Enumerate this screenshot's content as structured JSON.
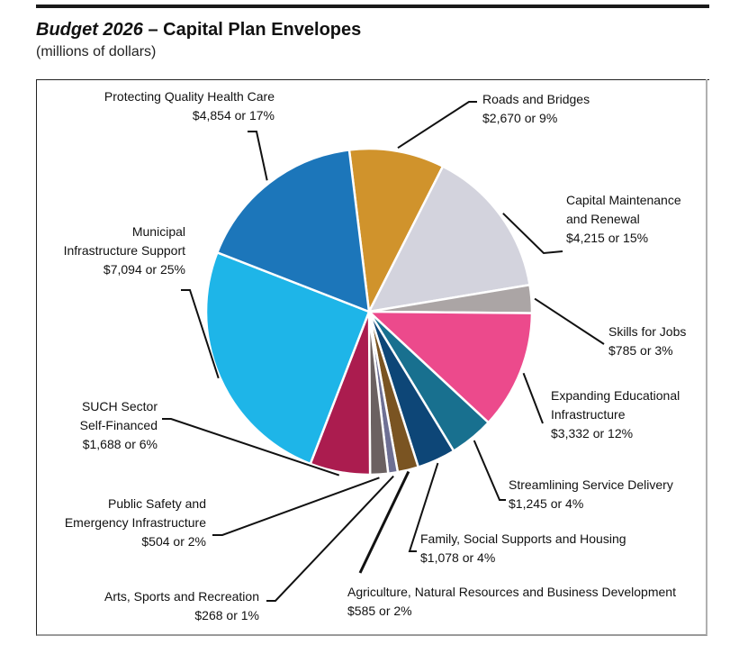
{
  "header": {
    "title_italic": "Budget 2026",
    "title_rest": " – Capital Plan Envelopes",
    "subtitle": "(millions of dollars)"
  },
  "chart_data": {
    "type": "pie",
    "title": "Budget 2026 – Capital Plan Envelopes",
    "subtitle": "(millions of dollars)",
    "units": "millions of dollars",
    "start_angle_deg": -7,
    "direction": "clockwise",
    "slices": [
      {
        "label": "Roads and Bridges",
        "value": 2670,
        "percent": 9,
        "value_text": "$2,670 or 9%",
        "color": "#D0932C",
        "label_lines": [
          "Roads and Bridges",
          "$2,670 or 9%"
        ]
      },
      {
        "label": "Capital Maintenance and Renewal",
        "value": 4215,
        "percent": 15,
        "value_text": "$4,215 or 15%",
        "color": "#D3D3DD",
        "label_lines": [
          "Capital Maintenance",
          "and Renewal",
          "$4,215 or 15%"
        ]
      },
      {
        "label": "Skills for Jobs",
        "value": 785,
        "percent": 3,
        "value_text": "$785 or 3%",
        "color": "#ABA5A5",
        "label_lines": [
          "Skills  for Jobs",
          "$785 or 3%"
        ]
      },
      {
        "label": "Expanding Educational Infrastructure",
        "value": 3332,
        "percent": 12,
        "value_text": "$3,332 or 12%",
        "color": "#EC4A8C",
        "label_lines": [
          "Expanding Educational",
          "Infrastructure",
          "$3,332 or 12%"
        ]
      },
      {
        "label": "Streamlining Service Delivery",
        "value": 1245,
        "percent": 4,
        "value_text": "$1,245 or 4%",
        "color": "#18708F",
        "label_lines": [
          "Streamlining Service  Delivery",
          "$1,245 or 4%"
        ]
      },
      {
        "label": "Family, Social Supports and Housing",
        "value": 1078,
        "percent": 4,
        "value_text": "$1,078 or 4%",
        "color": "#0D4677",
        "label_lines": [
          "Family,  Social Supports and Housing",
          "$1,078 or 4%"
        ]
      },
      {
        "label": "Agriculture, Natural Resources and Business Development",
        "value": 585,
        "percent": 2,
        "value_text": "$585 or 2%",
        "color": "#7A5422",
        "label_lines": [
          "Agriculture, Natural Resources and Business Development",
          "$585 or 2%"
        ]
      },
      {
        "label": "Arts, Sports and Recreation",
        "value": 268,
        "percent": 1,
        "value_text": "$268 or 1%",
        "color": "#6E7094",
        "label_lines": [
          "Arts, Sports and Recreation",
          "$268 or 1%"
        ]
      },
      {
        "label": "Public Safety and Emergency Infrastructure",
        "value": 504,
        "percent": 2,
        "value_text": "$504 or 2%",
        "color": "#6B6161",
        "label_lines": [
          "Public Safety and",
          "Emergency Infrastructure",
          "$504 or 2%"
        ]
      },
      {
        "label": "SUCH Sector Self-Financed",
        "value": 1688,
        "percent": 6,
        "value_text": "$1,688 or 6%",
        "color": "#AB1C4F",
        "label_lines": [
          "SUCH Sector",
          "Self-Financed",
          "$1,688 or 6%"
        ]
      },
      {
        "label": "Municipal Infrastructure Support",
        "value": 7094,
        "percent": 25,
        "value_text": "$7,094 or 25%",
        "color": "#1EB5E8",
        "label_lines": [
          "Municipal",
          "Infrastructure Support",
          "$7,094 or 25%"
        ]
      },
      {
        "label": "Protecting Quality Health Care",
        "value": 4854,
        "percent": 17,
        "value_text": "$4,854 or 17%",
        "color": "#1C76BA",
        "label_lines": [
          "Protecting Quality Health Care",
          "$4,854 or 17%"
        ]
      }
    ]
  }
}
